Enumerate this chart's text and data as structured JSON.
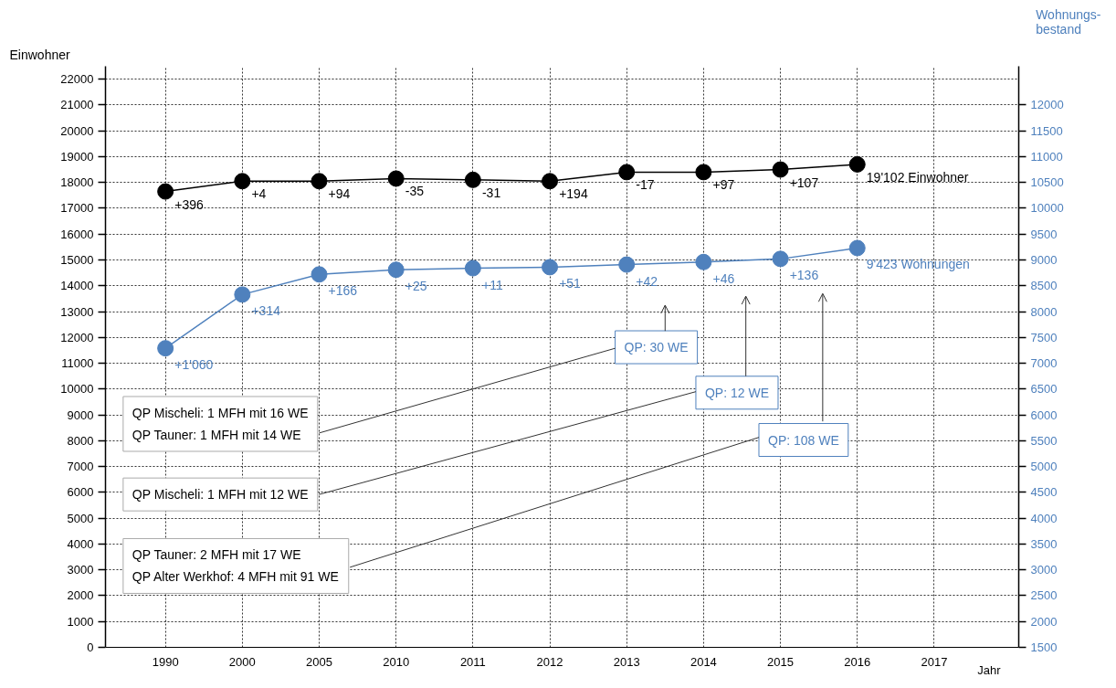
{
  "chart_data": {
    "type": "line",
    "categories": [
      "1990",
      "2000",
      "2005",
      "2010",
      "2011",
      "2012",
      "2013",
      "2014",
      "2015",
      "2016",
      "2017"
    ],
    "xlabel": "Jahr",
    "ylabel": "Einwohner",
    "y2label": "Wohnungs-\nbestand",
    "ylim": [
      0,
      22500
    ],
    "yticks": [
      0,
      1000,
      2000,
      3000,
      4000,
      5000,
      6000,
      7000,
      8000,
      9000,
      10000,
      11000,
      12000,
      13000,
      14000,
      15000,
      16000,
      17000,
      18000,
      19000,
      20000,
      21000,
      22000
    ],
    "y2lim": [
      1500,
      12750
    ],
    "y2ticks": [
      1500,
      2000,
      2500,
      3000,
      3500,
      4000,
      4500,
      5000,
      5500,
      6000,
      6500,
      7000,
      7500,
      8000,
      8500,
      9000,
      9500,
      10000,
      10500,
      11000,
      11500,
      12000
    ],
    "grid": true,
    "marker": "circle",
    "line_style": "solid",
    "series": [
      {
        "color": "#000000",
        "values": [
          17650,
          18050,
          18050,
          18150,
          18100,
          18050,
          18400,
          18400,
          18500,
          18700,
          null
        ]
      },
      {
        "axis": "y2",
        "color": "#4f81bd",
        "values": [
          7290,
          8330,
          8720,
          8810,
          8840,
          8860,
          8910,
          8960,
          9020,
          9230,
          null
        ]
      }
    ],
    "annotations": [
      "+396",
      "+4",
      "+94",
      "-35",
      "-31",
      "+194",
      "-17",
      "+97",
      "+107",
      "19'102 Einwohner",
      "+1'060",
      "+314",
      "+166",
      "+25",
      "+11",
      "+51",
      "+42",
      "+46",
      "+136",
      "9'423 Wohnungen",
      "QP Mischeli: 1 MFH mit 16 WE\nQP Tauner: 1 MFH mit 14 WE",
      "QP Mischeli: 1 MFH mit 12 WE",
      "QP Tauner: 2 MFH mit 17 WE\nQP Alter Werkhof: 4 MFH mit 91 WE",
      "QP: 30 WE",
      "QP: 12 WE",
      "QP: 108 WE"
    ]
  }
}
